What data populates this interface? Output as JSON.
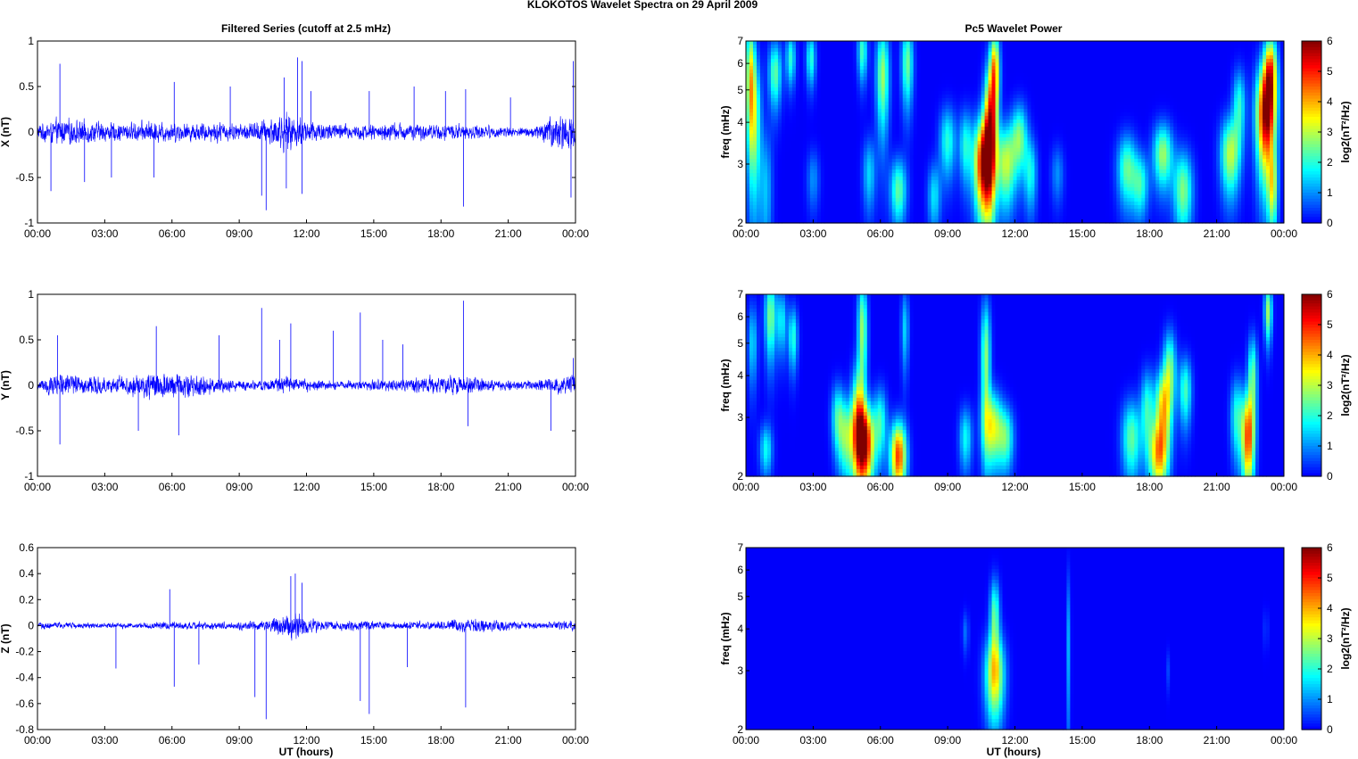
{
  "figure": {
    "title": "KLOKOTOS Wavelet Spectra on 29 April     2009",
    "left_title": "Filtered Series (cutoff at 2.5 mHz)",
    "right_title": "Pc5 Wavelet Power",
    "xlabel": "UT (hours)"
  },
  "chart_data": [
    {
      "type": "line",
      "component": "X",
      "ylabel": "X (nT)",
      "xlim": [
        0,
        24
      ],
      "ylim": [
        -1,
        1
      ],
      "yticks": [
        "1",
        "0.5",
        "0",
        "-0.5",
        "-1"
      ],
      "xticks": [
        "00:00",
        "03:00",
        "06:00",
        "09:00",
        "12:00",
        "15:00",
        "18:00",
        "21:00",
        "00:00"
      ],
      "color": "#0000ff",
      "noise_profile": [
        [
          0,
          0.12
        ],
        [
          1,
          0.2
        ],
        [
          2,
          0.18
        ],
        [
          3,
          0.15
        ],
        [
          4,
          0.14
        ],
        [
          5,
          0.17
        ],
        [
          6,
          0.15
        ],
        [
          7,
          0.14
        ],
        [
          8,
          0.16
        ],
        [
          9,
          0.12
        ],
        [
          10,
          0.18
        ],
        [
          11,
          0.3
        ],
        [
          12,
          0.2
        ],
        [
          13,
          0.14
        ],
        [
          14,
          0.12
        ],
        [
          15,
          0.12
        ],
        [
          16,
          0.14
        ],
        [
          17,
          0.12
        ],
        [
          18,
          0.12
        ],
        [
          19,
          0.12
        ],
        [
          20,
          0.1
        ],
        [
          21,
          0.08
        ],
        [
          22,
          0.07
        ],
        [
          23,
          0.25
        ],
        [
          24,
          0.3
        ]
      ],
      "spikes": [
        [
          0.6,
          -0.65
        ],
        [
          1,
          0.75
        ],
        [
          2.1,
          -0.55
        ],
        [
          3.3,
          -0.5
        ],
        [
          5.2,
          -0.5
        ],
        [
          6.1,
          0.55
        ],
        [
          8.6,
          0.5
        ],
        [
          10,
          -0.7
        ],
        [
          10.2,
          -0.86
        ],
        [
          11,
          0.6
        ],
        [
          11.1,
          -0.62
        ],
        [
          11.6,
          0.82
        ],
        [
          11.8,
          0.78
        ],
        [
          11.8,
          -0.68
        ],
        [
          12.2,
          0.45
        ],
        [
          14.8,
          0.45
        ],
        [
          16.8,
          0.5
        ],
        [
          18.2,
          0.45
        ],
        [
          19,
          -0.82
        ],
        [
          19.1,
          0.47
        ],
        [
          21.1,
          0.38
        ],
        [
          23.8,
          -0.72
        ],
        [
          23.9,
          0.78
        ]
      ]
    },
    {
      "type": "line",
      "component": "Y",
      "ylabel": "Y (nT)",
      "xlim": [
        0,
        24
      ],
      "ylim": [
        -1,
        1
      ],
      "yticks": [
        "1",
        "0.5",
        "0",
        "-0.5",
        "-1"
      ],
      "xticks": [
        "00:00",
        "03:00",
        "06:00",
        "09:00",
        "12:00",
        "15:00",
        "18:00",
        "21:00",
        "00:00"
      ],
      "color": "#0000ff",
      "noise_profile": [
        [
          0,
          0.08
        ],
        [
          1,
          0.2
        ],
        [
          2,
          0.16
        ],
        [
          3,
          0.12
        ],
        [
          4,
          0.14
        ],
        [
          5,
          0.22
        ],
        [
          6,
          0.2
        ],
        [
          7,
          0.18
        ],
        [
          8,
          0.12
        ],
        [
          9,
          0.08
        ],
        [
          10,
          0.08
        ],
        [
          11,
          0.12
        ],
        [
          12,
          0.1
        ],
        [
          13,
          0.07
        ],
        [
          14,
          0.07
        ],
        [
          15,
          0.08
        ],
        [
          16,
          0.1
        ],
        [
          17,
          0.12
        ],
        [
          18,
          0.14
        ],
        [
          19,
          0.15
        ],
        [
          20,
          0.1
        ],
        [
          21,
          0.08
        ],
        [
          22,
          0.07
        ],
        [
          23,
          0.12
        ],
        [
          24,
          0.18
        ]
      ],
      "spikes": [
        [
          0.9,
          0.55
        ],
        [
          1,
          -0.65
        ],
        [
          4.5,
          -0.5
        ],
        [
          5.3,
          0.65
        ],
        [
          6.3,
          -0.55
        ],
        [
          8.1,
          0.55
        ],
        [
          10,
          0.85
        ],
        [
          10.8,
          0.5
        ],
        [
          11.3,
          0.68
        ],
        [
          13.2,
          0.6
        ],
        [
          14.4,
          0.8
        ],
        [
          15.4,
          0.5
        ],
        [
          16.3,
          0.45
        ],
        [
          19,
          0.93
        ],
        [
          19.2,
          -0.45
        ],
        [
          22.9,
          -0.5
        ],
        [
          23.9,
          0.3
        ]
      ]
    },
    {
      "type": "line",
      "component": "Z",
      "ylabel": "Z (nT)",
      "xlim": [
        0,
        24
      ],
      "ylim": [
        -0.8,
        0.6
      ],
      "yticks": [
        "0.6",
        "0.4",
        "0.2",
        "0",
        "-0.2",
        "-0.4",
        "-0.6",
        "-0.8"
      ],
      "xticks": [
        "00:00",
        "03:00",
        "06:00",
        "09:00",
        "12:00",
        "15:00",
        "18:00",
        "21:00",
        "00:00"
      ],
      "color": "#0000ff",
      "noise_profile": [
        [
          0,
          0.04
        ],
        [
          2,
          0.03
        ],
        [
          4,
          0.03
        ],
        [
          6,
          0.04
        ],
        [
          8,
          0.04
        ],
        [
          10,
          0.05
        ],
        [
          11,
          0.12
        ],
        [
          11.5,
          0.16
        ],
        [
          12,
          0.09
        ],
        [
          13,
          0.05
        ],
        [
          14,
          0.05
        ],
        [
          15,
          0.05
        ],
        [
          16,
          0.04
        ],
        [
          17,
          0.04
        ],
        [
          18,
          0.05
        ],
        [
          19,
          0.08
        ],
        [
          20,
          0.07
        ],
        [
          21,
          0.05
        ],
        [
          22,
          0.04
        ],
        [
          23,
          0.04
        ],
        [
          24,
          0.06
        ]
      ],
      "spikes": [
        [
          3.5,
          -0.33
        ],
        [
          5.9,
          0.28
        ],
        [
          6.1,
          -0.47
        ],
        [
          7.2,
          -0.3
        ],
        [
          9.7,
          -0.55
        ],
        [
          10.2,
          -0.72
        ],
        [
          11.3,
          0.38
        ],
        [
          11.5,
          0.4
        ],
        [
          11.8,
          0.33
        ],
        [
          14.4,
          -0.58
        ],
        [
          14.8,
          -0.68
        ],
        [
          16.5,
          -0.32
        ],
        [
          19.1,
          -0.63
        ]
      ]
    },
    {
      "type": "heatmap",
      "component": "X",
      "ylabel": "freq (mHz)",
      "colorbar_label": "log2(nT²/Hz)",
      "xlim": [
        0,
        24
      ],
      "ylim": [
        2,
        7
      ],
      "yscale": "log",
      "yticks": [
        "7",
        "6",
        "5",
        "4",
        "3",
        "2"
      ],
      "xticks": [
        "00:00",
        "03:00",
        "06:00",
        "09:00",
        "12:00",
        "15:00",
        "18:00",
        "21:00",
        "00:00"
      ],
      "clim": [
        0,
        6
      ],
      "cticks": [
        "6",
        "5",
        "4",
        "3",
        "2",
        "1",
        "0"
      ],
      "blobs": [
        [
          0.2,
          5.5,
          0.15,
          1.6,
          3.2
        ],
        [
          0.4,
          4,
          0.2,
          1.4,
          2.4
        ],
        [
          0.9,
          2.5,
          0.2,
          0.8,
          1.3
        ],
        [
          1.3,
          5.6,
          0.2,
          0.9,
          2.4
        ],
        [
          2,
          6.2,
          0.15,
          0.8,
          2
        ],
        [
          2.9,
          6.2,
          0.15,
          0.8,
          2
        ],
        [
          3,
          2.7,
          0.2,
          0.4,
          1
        ],
        [
          5.2,
          6.5,
          0.15,
          0.9,
          2.2
        ],
        [
          5.5,
          2.8,
          0.2,
          0.5,
          1.5
        ],
        [
          6.1,
          5.5,
          0.2,
          1.4,
          2.8
        ],
        [
          6.8,
          2.5,
          0.25,
          0.4,
          2.4
        ],
        [
          7.2,
          6,
          0.18,
          1.2,
          2.5
        ],
        [
          8.4,
          2.4,
          0.2,
          0.4,
          1.6
        ],
        [
          9,
          3.5,
          0.25,
          0.6,
          2
        ],
        [
          9.8,
          3.4,
          0.2,
          0.6,
          1.9
        ],
        [
          10.6,
          3,
          0.3,
          0.7,
          5.5
        ],
        [
          10.9,
          3.9,
          0.2,
          1.2,
          4.8
        ],
        [
          11.1,
          5.8,
          0.15,
          1.1,
          3.8
        ],
        [
          11.6,
          3,
          0.3,
          0.6,
          3
        ],
        [
          12.2,
          3.6,
          0.25,
          0.6,
          2.5
        ],
        [
          12.7,
          2.8,
          0.2,
          0.5,
          1.8
        ],
        [
          13.9,
          2.8,
          0.2,
          0.4,
          1
        ],
        [
          17,
          2.9,
          0.3,
          0.5,
          2.4
        ],
        [
          17.6,
          2.6,
          0.25,
          0.4,
          2
        ],
        [
          18.6,
          3.2,
          0.3,
          0.5,
          2.8
        ],
        [
          19.5,
          2.5,
          0.3,
          0.5,
          2.6
        ],
        [
          21.6,
          3.2,
          0.3,
          0.6,
          3
        ],
        [
          22,
          4.5,
          0.2,
          0.8,
          2
        ],
        [
          23.2,
          4.2,
          0.3,
          1.1,
          5.8
        ],
        [
          23.4,
          5.8,
          0.2,
          1,
          3.8
        ],
        [
          23.5,
          2.5,
          0.15,
          0.5,
          2.5
        ]
      ]
    },
    {
      "type": "heatmap",
      "component": "Y",
      "ylabel": "freq (mHz)",
      "colorbar_label": "log2(nT²/Hz)",
      "xlim": [
        0,
        24
      ],
      "ylim": [
        2,
        7
      ],
      "yscale": "log",
      "yticks": [
        "7",
        "6",
        "5",
        "4",
        "3",
        "2"
      ],
      "xticks": [
        "00:00",
        "03:00",
        "06:00",
        "09:00",
        "12:00",
        "15:00",
        "18:00",
        "21:00",
        "00:00"
      ],
      "clim": [
        0,
        6
      ],
      "cticks": [
        "6",
        "5",
        "4",
        "3",
        "2",
        "1",
        "0"
      ],
      "blobs": [
        [
          0.3,
          5,
          0.15,
          1,
          1.5
        ],
        [
          0.9,
          2.4,
          0.2,
          0.3,
          1.8
        ],
        [
          1.1,
          6,
          0.18,
          1.2,
          2.6
        ],
        [
          1.6,
          5.8,
          0.15,
          0.9,
          1.7
        ],
        [
          2.1,
          5.2,
          0.15,
          0.8,
          2
        ],
        [
          4.1,
          3,
          0.2,
          0.5,
          2
        ],
        [
          4.5,
          2.6,
          0.25,
          0.5,
          2.5
        ],
        [
          5,
          3,
          0.2,
          0.8,
          3.2
        ],
        [
          5.3,
          2.5,
          0.3,
          0.5,
          5.6
        ],
        [
          5.2,
          5.5,
          0.15,
          1.4,
          2.8
        ],
        [
          6,
          2.9,
          0.2,
          0.5,
          2
        ],
        [
          6.8,
          2.3,
          0.25,
          0.4,
          4.8
        ],
        [
          7.1,
          5.5,
          0.12,
          1.1,
          1.5
        ],
        [
          9.8,
          2.6,
          0.2,
          0.4,
          1.8
        ],
        [
          10.7,
          4.5,
          0.15,
          1.4,
          2.7
        ],
        [
          11,
          2.8,
          0.3,
          0.5,
          3.2
        ],
        [
          11.6,
          2.6,
          0.25,
          0.4,
          2.2
        ],
        [
          17.2,
          2.6,
          0.3,
          0.5,
          2.4
        ],
        [
          17.9,
          3.2,
          0.2,
          0.6,
          2
        ],
        [
          18.4,
          2.3,
          0.3,
          0.4,
          3.6
        ],
        [
          18.6,
          3.2,
          0.25,
          0.6,
          3.5
        ],
        [
          18.9,
          4.2,
          0.2,
          0.8,
          2.5
        ],
        [
          19.6,
          3.6,
          0.2,
          0.6,
          2.2
        ],
        [
          21.9,
          3,
          0.2,
          0.6,
          2
        ],
        [
          22.4,
          2.6,
          0.2,
          0.6,
          4.6
        ],
        [
          22.6,
          4,
          0.15,
          0.8,
          2.4
        ],
        [
          23.3,
          6.2,
          0.12,
          0.9,
          2.8
        ]
      ]
    },
    {
      "type": "heatmap",
      "component": "Z",
      "ylabel": "freq (mHz)",
      "colorbar_label": "log2(nT²/Hz)",
      "xlim": [
        0,
        24
      ],
      "ylim": [
        2,
        7
      ],
      "yscale": "log",
      "yticks": [
        "7",
        "6",
        "5",
        "4",
        "3",
        "2"
      ],
      "xticks": [
        "00:00",
        "03:00",
        "06:00",
        "09:00",
        "12:00",
        "15:00",
        "18:00",
        "21:00",
        "00:00"
      ],
      "clim": [
        0,
        6
      ],
      "cticks": [
        "6",
        "5",
        "4",
        "3",
        "2",
        "1",
        "0"
      ],
      "blobs": [
        [
          9.8,
          3.9,
          0.1,
          0.4,
          0.8
        ],
        [
          11.1,
          2.9,
          0.3,
          0.6,
          3.6
        ],
        [
          11.1,
          4.4,
          0.15,
          0.8,
          2.4
        ],
        [
          14.4,
          3.5,
          0.06,
          1.5,
          1.2
        ],
        [
          18.8,
          3,
          0.05,
          0.3,
          0.6
        ],
        [
          23.2,
          4,
          0.06,
          0.4,
          0.6
        ]
      ]
    }
  ]
}
